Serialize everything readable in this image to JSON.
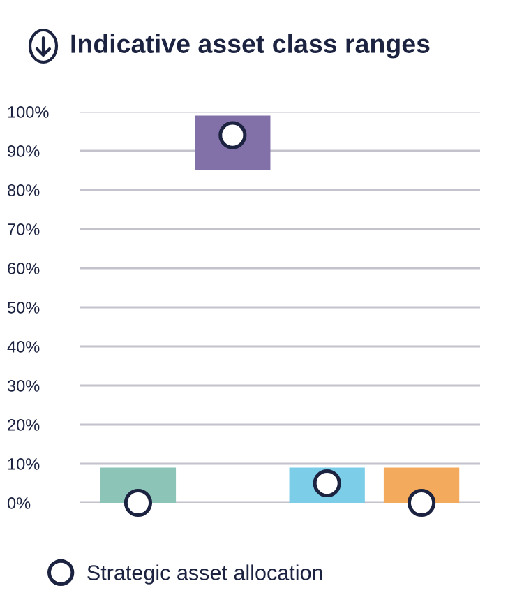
{
  "chart_data": {
    "type": "bar",
    "title": "Indicative asset class ranges",
    "categories": [
      null,
      null,
      null,
      null
    ],
    "series": [
      {
        "colors": [
          "#8cc4b8",
          "#8270a8",
          "#7ccde8",
          "#f4aa5c"
        ],
        "base": [
          0,
          85,
          0,
          0
        ],
        "values": [
          9,
          14,
          9,
          9
        ]
      },
      {
        "type": "scatter",
        "name": "Strategic asset allocation",
        "color": "#ffffff",
        "values": [
          0,
          94,
          5,
          0
        ]
      }
    ],
    "ylim": [
      0,
      100
    ],
    "yticks": [
      {
        "value": 0,
        "label": "0%"
      },
      {
        "value": 10,
        "label": "10%"
      },
      {
        "value": 20,
        "label": "20%"
      },
      {
        "value": 30,
        "label": "30%"
      },
      {
        "value": 40,
        "label": "40%"
      },
      {
        "value": 50,
        "label": "50%"
      },
      {
        "value": 60,
        "label": "60%"
      },
      {
        "value": 70,
        "label": "70%"
      },
      {
        "value": 80,
        "label": "80%"
      },
      {
        "value": 90,
        "label": "90%"
      },
      {
        "value": 100,
        "label": "100%"
      }
    ],
    "grid": "y",
    "legend": "bottom",
    "tick_labels": "y",
    "marker": "circle"
  }
}
